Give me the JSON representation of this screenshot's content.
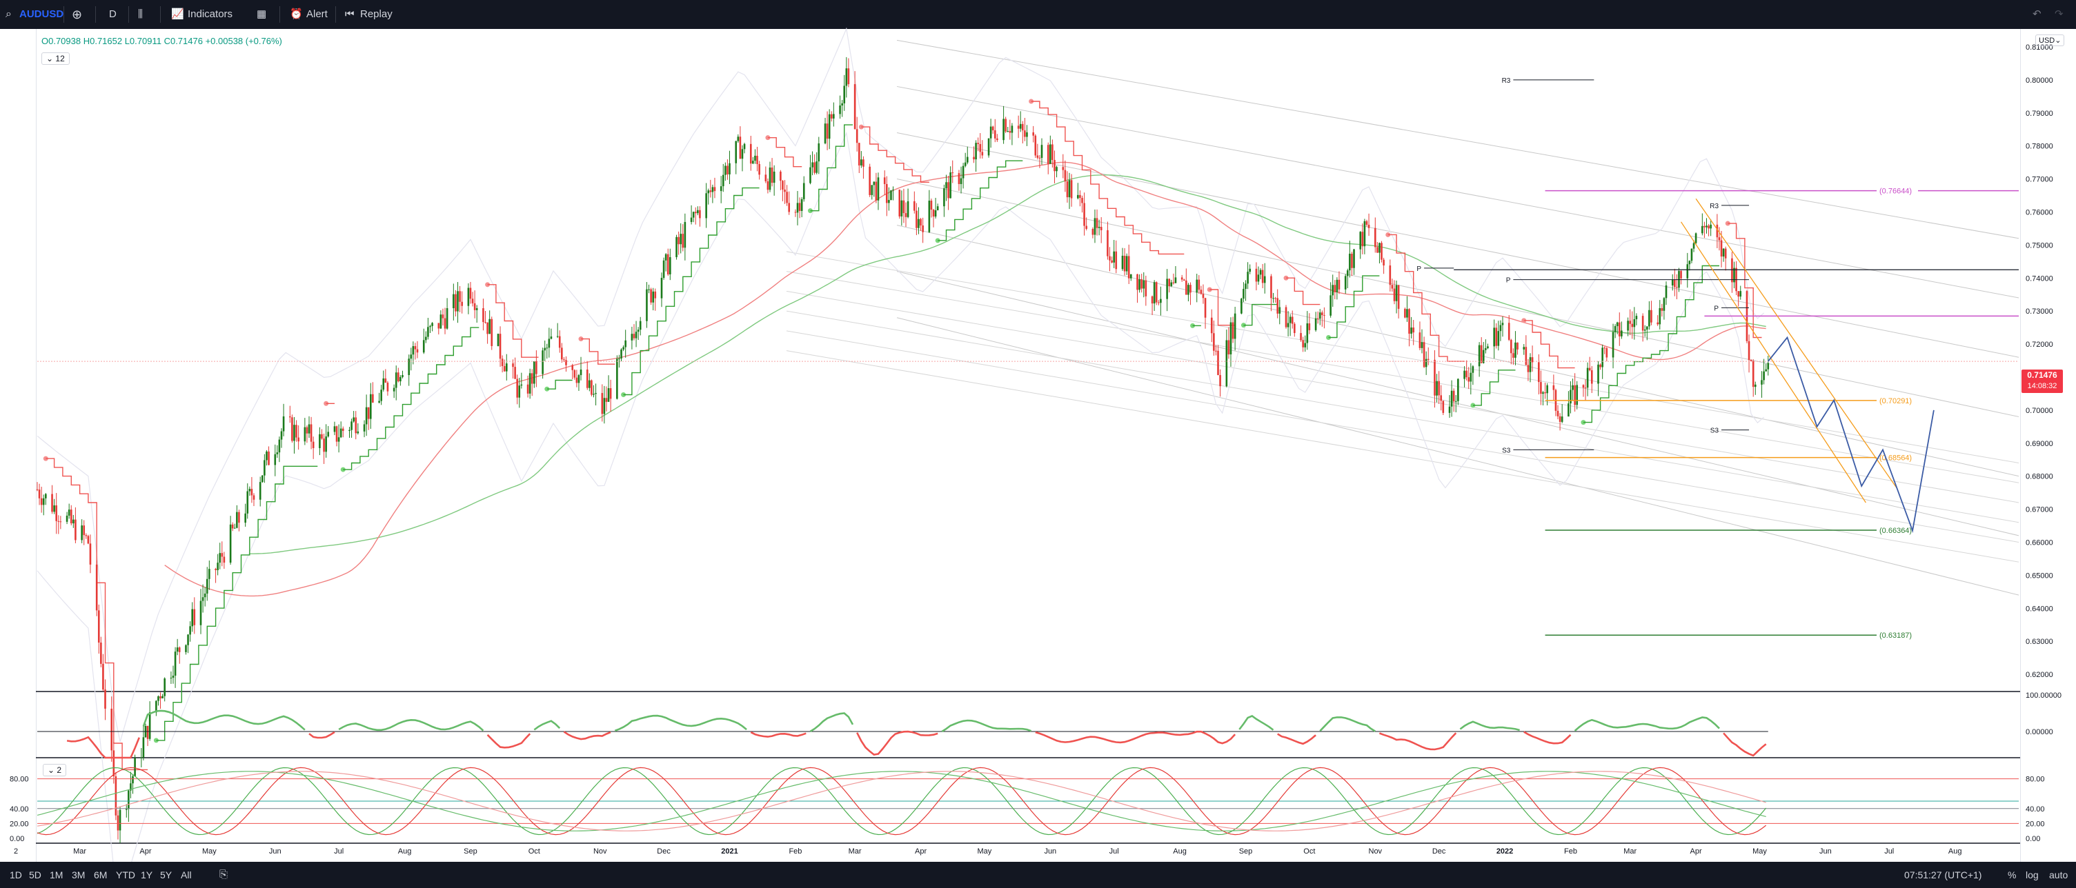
{
  "toolbar": {
    "symbol": "AUDUSD",
    "interval": "D",
    "indicators_label": "Indicators",
    "alert_label": "Alert",
    "replay_label": "Replay"
  },
  "legend": {
    "ohlc": "O0.70938 H0.71652 L0.70911 C0.71476 +0.00538 (+0.76%)",
    "collapse_count": "12",
    "pane3_count": "2"
  },
  "price_axis": {
    "currency": "USD",
    "ticks": [
      "0.81000",
      "0.80000",
      "0.79000",
      "0.78000",
      "0.77000",
      "0.76000",
      "0.75000",
      "0.74000",
      "0.73000",
      "0.72000",
      "0.71000",
      "0.70000",
      "0.69000",
      "0.68000",
      "0.67000",
      "0.66000",
      "0.65000",
      "0.64000",
      "0.63000",
      "0.62000"
    ],
    "last_price": "0.71476",
    "countdown": "14:08:32"
  },
  "pane2_axis": [
    "100.00000",
    "0.00000"
  ],
  "pane3_axis": [
    "80.00",
    "40.00",
    "20.00",
    "0.00"
  ],
  "time_axis": [
    "Mar",
    "Apr",
    "May",
    "Jun",
    "Jul",
    "Aug",
    "Sep",
    "Oct",
    "Nov",
    "Dec",
    "2021",
    "Feb",
    "Mar",
    "Apr",
    "May",
    "Jun",
    "Jul",
    "Aug",
    "Sep",
    "Oct",
    "Nov",
    "Dec",
    "2022",
    "Feb",
    "Mar",
    "Apr",
    "May",
    "Jun",
    "Jul",
    "Aug"
  ],
  "pane_number": "2",
  "bottombar": {
    "ranges": [
      "1D",
      "5D",
      "1M",
      "3M",
      "6M",
      "YTD",
      "1Y",
      "5Y",
      "All"
    ],
    "time": "07:51:27 (UTC+1)",
    "percent": "%",
    "log": "log",
    "auto": "auto"
  },
  "colors": {
    "up": "#089981",
    "up_candle": "#1b7a1b",
    "down": "#e53935",
    "supertrend_up": "#2e9e2e",
    "supertrend_down": "#ef5350",
    "fib_orange": "#f59c1a",
    "fib_green": "#2e7d32",
    "pivot_magenta": "#c94fc9",
    "projection": "#3b5ba5"
  },
  "chart_data": {
    "type": "candlestick",
    "symbol": "AUDUSD",
    "timeframe": "D",
    "ylim": [
      0.615,
      0.815
    ],
    "x_range": [
      "2020-02-10",
      "2022-08-31"
    ],
    "price_path": [
      {
        "date": "2020-02-10",
        "close": 0.676
      },
      {
        "date": "2020-03-05",
        "close": 0.66
      },
      {
        "date": "2020-03-19",
        "close": 0.575
      },
      {
        "date": "2020-04-06",
        "close": 0.612
      },
      {
        "date": "2020-05-01",
        "close": 0.648
      },
      {
        "date": "2020-06-05",
        "close": 0.695
      },
      {
        "date": "2020-06-25",
        "close": 0.69
      },
      {
        "date": "2020-07-15",
        "close": 0.7
      },
      {
        "date": "2020-08-05",
        "close": 0.718
      },
      {
        "date": "2020-09-01",
        "close": 0.737
      },
      {
        "date": "2020-09-25",
        "close": 0.704
      },
      {
        "date": "2020-10-10",
        "close": 0.722
      },
      {
        "date": "2020-11-02",
        "close": 0.7
      },
      {
        "date": "2020-11-20",
        "close": 0.73
      },
      {
        "date": "2020-12-15",
        "close": 0.758
      },
      {
        "date": "2021-01-06",
        "close": 0.78
      },
      {
        "date": "2021-02-01",
        "close": 0.761
      },
      {
        "date": "2021-02-25",
        "close": 0.8
      },
      {
        "date": "2021-03-05",
        "close": 0.77
      },
      {
        "date": "2021-04-01",
        "close": 0.757
      },
      {
        "date": "2021-05-10",
        "close": 0.788
      },
      {
        "date": "2021-06-01",
        "close": 0.777
      },
      {
        "date": "2021-06-25",
        "close": 0.751
      },
      {
        "date": "2021-07-20",
        "close": 0.735
      },
      {
        "date": "2021-08-10",
        "close": 0.738
      },
      {
        "date": "2021-08-20",
        "close": 0.711
      },
      {
        "date": "2021-09-03",
        "close": 0.745
      },
      {
        "date": "2021-09-28",
        "close": 0.72
      },
      {
        "date": "2021-10-28",
        "close": 0.755
      },
      {
        "date": "2021-11-15",
        "close": 0.73
      },
      {
        "date": "2021-12-03",
        "close": 0.701
      },
      {
        "date": "2021-12-30",
        "close": 0.725
      },
      {
        "date": "2022-01-28",
        "close": 0.699
      },
      {
        "date": "2022-02-25",
        "close": 0.725
      },
      {
        "date": "2022-03-15",
        "close": 0.73
      },
      {
        "date": "2022-04-05",
        "close": 0.757
      },
      {
        "date": "2022-04-20",
        "close": 0.74
      },
      {
        "date": "2022-04-28",
        "close": 0.71
      },
      {
        "date": "2022-05-05",
        "close": 0.7148
      }
    ],
    "horizontal_levels": [
      {
        "label": "(0.76644)",
        "value": 0.76644,
        "color": "#c94fc9"
      },
      {
        "label": "(0.70291)",
        "value": 0.70291,
        "color": "#f59c1a"
      },
      {
        "label": "(0.68564)",
        "value": 0.68564,
        "color": "#f59c1a"
      },
      {
        "label": "(0.66364)",
        "value": 0.66364,
        "color": "#2e7d32"
      },
      {
        "label": "(0.63187)",
        "value": 0.63187,
        "color": "#2e7d32"
      }
    ],
    "pivot_labels": [
      {
        "label": "R3",
        "value": 0.8
      },
      {
        "label": "R3",
        "value": 0.762
      },
      {
        "label": "P",
        "value": 0.743
      },
      {
        "label": "P",
        "value": 0.7395
      },
      {
        "label": "P",
        "value": 0.731
      },
      {
        "label": "S3",
        "value": 0.694
      },
      {
        "label": "S3",
        "value": 0.688
      }
    ],
    "projection_path": [
      {
        "date": "2022-05-05",
        "value": 0.7148
      },
      {
        "date": "2022-05-14",
        "value": 0.722
      },
      {
        "date": "2022-05-28",
        "value": 0.695
      },
      {
        "date": "2022-06-05",
        "value": 0.703
      },
      {
        "date": "2022-06-18",
        "value": 0.677
      },
      {
        "date": "2022-06-28",
        "value": 0.688
      },
      {
        "date": "2022-07-12",
        "value": 0.6635
      },
      {
        "date": "2022-07-22",
        "value": 0.7
      }
    ],
    "oscillator_pane": {
      "axis": [
        100,
        0
      ]
    },
    "stochastic_pane": {
      "levels": [
        80,
        40,
        20,
        0
      ]
    }
  }
}
